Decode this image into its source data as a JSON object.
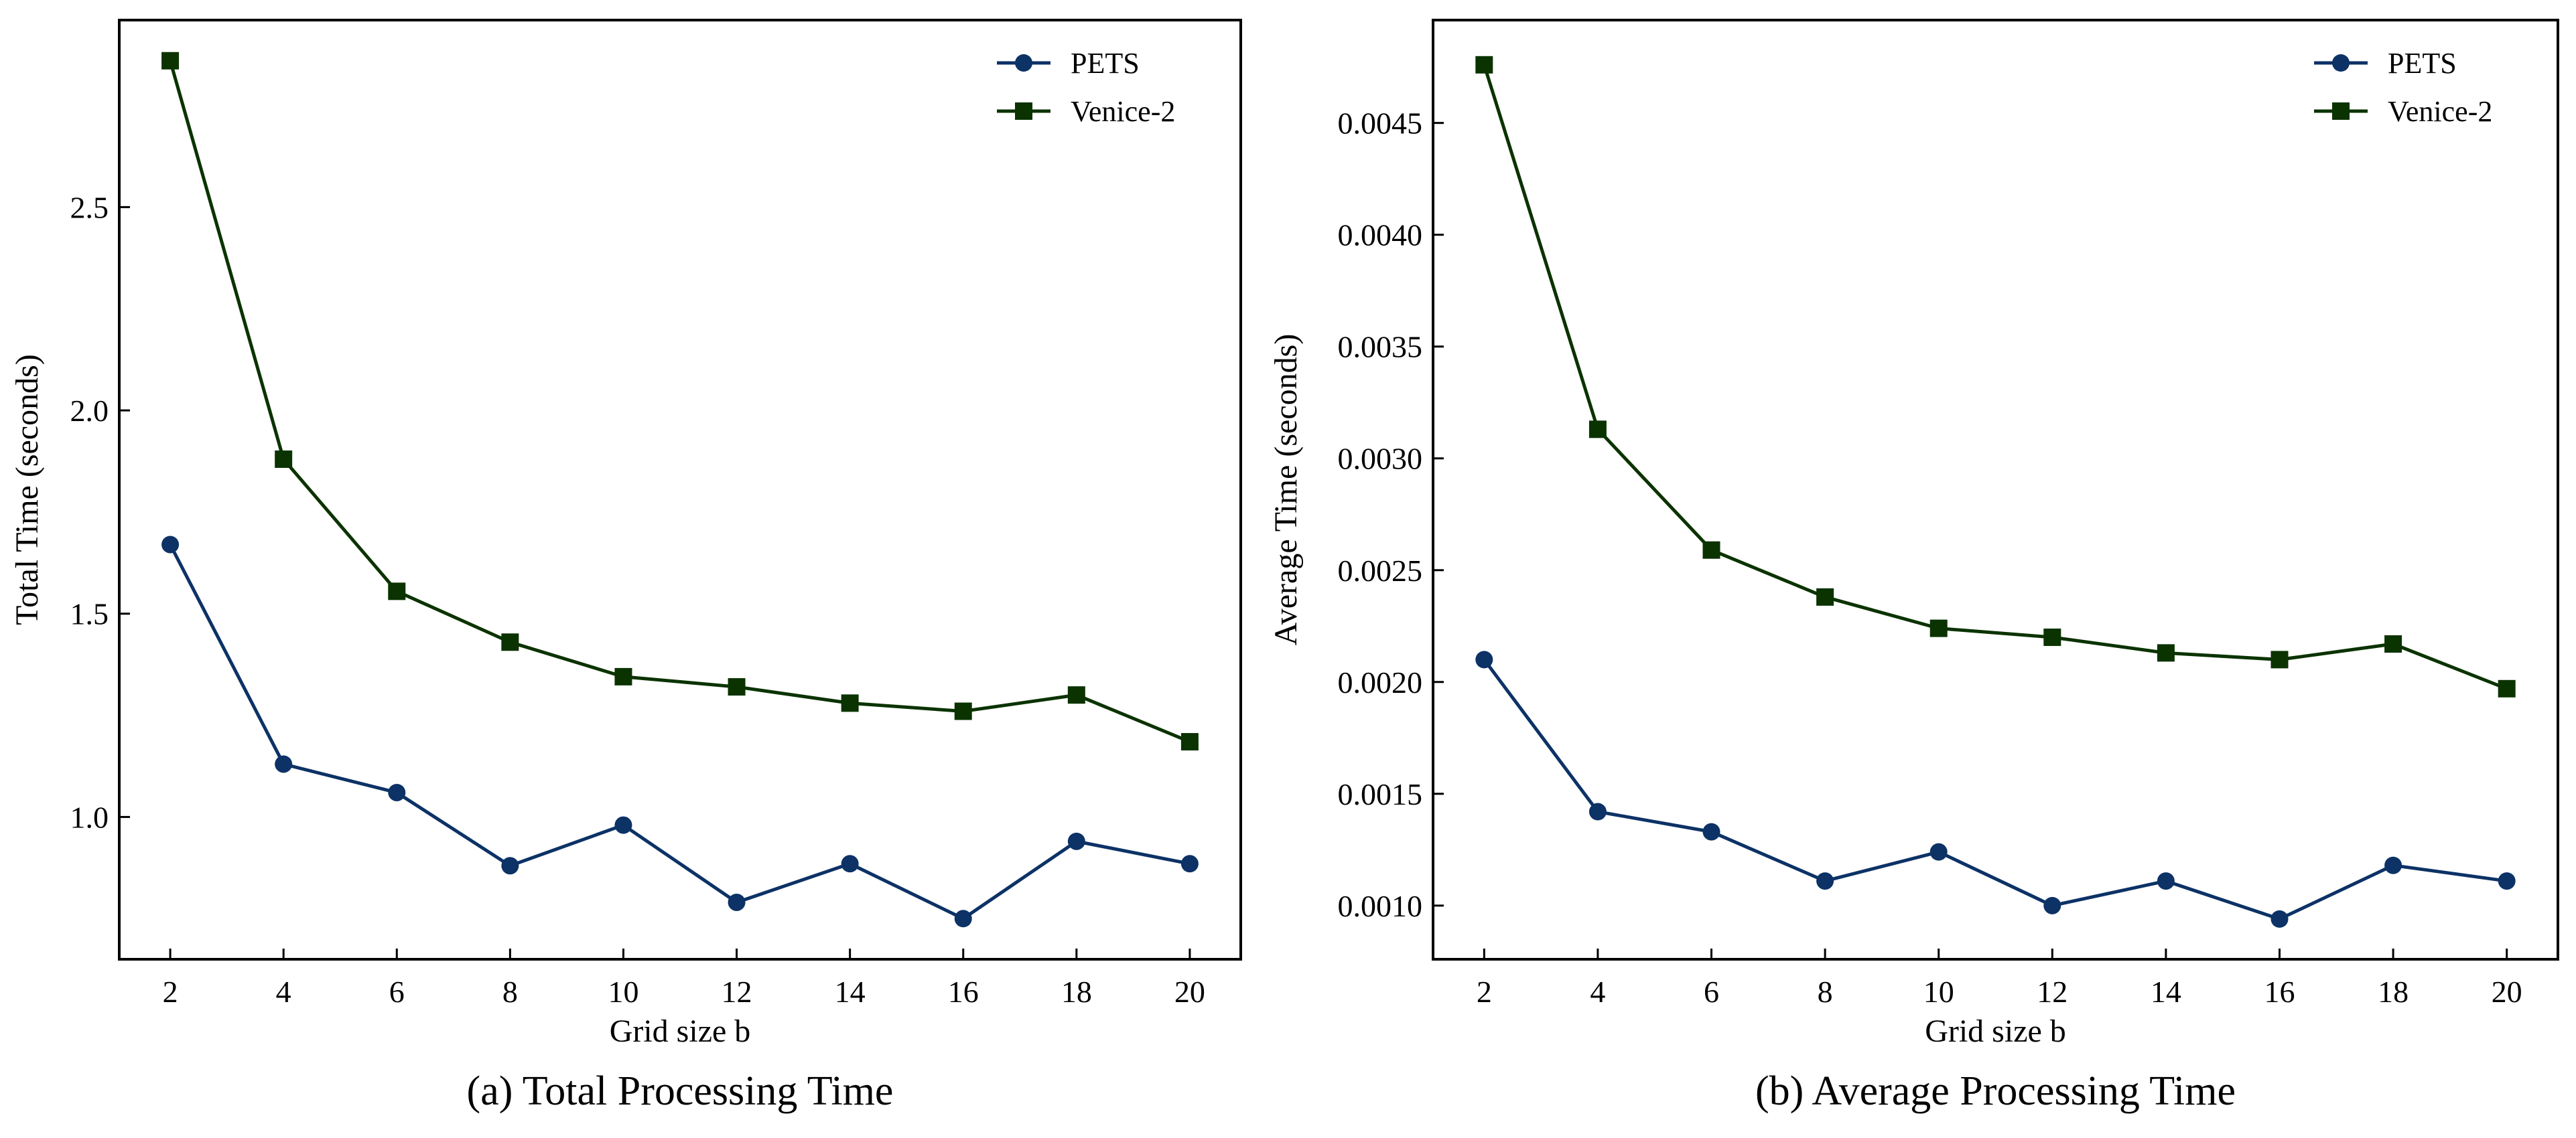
{
  "chart_data": [
    {
      "type": "line",
      "caption": "(a) Total Processing Time",
      "xlabel": "Grid size b",
      "ylabel": "Total Time (seconds)",
      "x": [
        2,
        4,
        6,
        8,
        10,
        12,
        14,
        16,
        18,
        20
      ],
      "xlim": [
        1.1,
        20.9
      ],
      "ylim": [
        0.65,
        2.96
      ],
      "xticks": [
        2,
        4,
        6,
        8,
        10,
        12,
        14,
        16,
        18,
        20
      ],
      "xtick_labels": [
        "2",
        "4",
        "6",
        "8",
        "10",
        "12",
        "14",
        "16",
        "18",
        "20"
      ],
      "yticks": [
        1.0,
        1.5,
        2.0,
        2.5
      ],
      "ytick_labels": [
        "1.0",
        "1.5",
        "2.0",
        "2.5"
      ],
      "legend": "top-right",
      "grid": false,
      "series": [
        {
          "name": "PETS",
          "marker": "circle",
          "color": "#0c3266",
          "values": [
            1.67,
            1.13,
            1.06,
            0.88,
            0.98,
            0.79,
            0.885,
            0.75,
            0.94,
            0.885
          ]
        },
        {
          "name": "Venice-2",
          "marker": "square",
          "color": "#0b3300",
          "values": [
            2.86,
            1.88,
            1.555,
            1.43,
            1.345,
            1.32,
            1.28,
            1.26,
            1.3,
            1.185
          ]
        }
      ]
    },
    {
      "type": "line",
      "caption": "(b) Average Processing Time",
      "xlabel": "Grid size b",
      "ylabel": "Average Time (seconds)",
      "x": [
        2,
        4,
        6,
        8,
        10,
        12,
        14,
        16,
        18,
        20
      ],
      "xlim": [
        1.1,
        20.9
      ],
      "ylim": [
        0.00076,
        0.00496
      ],
      "xticks": [
        2,
        4,
        6,
        8,
        10,
        12,
        14,
        16,
        18,
        20
      ],
      "xtick_labels": [
        "2",
        "4",
        "6",
        "8",
        "10",
        "12",
        "14",
        "16",
        "18",
        "20"
      ],
      "yticks": [
        0.001,
        0.0015,
        0.002,
        0.0025,
        0.003,
        0.0035,
        0.004,
        0.0045
      ],
      "ytick_labels": [
        "0.0010",
        "0.0015",
        "0.0020",
        "0.0025",
        "0.0030",
        "0.0035",
        "0.0040",
        "0.0045"
      ],
      "legend": "top-right",
      "grid": false,
      "series": [
        {
          "name": "PETS",
          "marker": "circle",
          "color": "#0c3266",
          "values": [
            0.0021,
            0.00142,
            0.00133,
            0.00111,
            0.00124,
            0.001,
            0.00111,
            0.00094,
            0.00118,
            0.00111
          ]
        },
        {
          "name": "Venice-2",
          "marker": "square",
          "color": "#0b3300",
          "values": [
            0.00476,
            0.00313,
            0.00259,
            0.00238,
            0.00224,
            0.0022,
            0.00213,
            0.0021,
            0.00217,
            0.00197
          ]
        }
      ]
    }
  ]
}
